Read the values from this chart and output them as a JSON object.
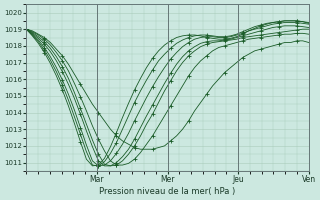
{
  "title": "Pression niveau de la mer( hPa )",
  "xlim": [
    0,
    96
  ],
  "ylim": [
    1010.5,
    1020.5
  ],
  "yticks": [
    1011,
    1012,
    1013,
    1014,
    1015,
    1016,
    1017,
    1018,
    1019,
    1020
  ],
  "xtick_positions": [
    24,
    48,
    72,
    96
  ],
  "xtick_labels": [
    "Mar",
    "Mer",
    "Jeu",
    "Ven"
  ],
  "bg_color": "#cce8e0",
  "grid_color": "#aaccbb",
  "line_color": "#1a5c28",
  "marker": "+",
  "markevery": 3,
  "series": [
    [
      1019.0,
      1018.9,
      1018.7,
      1018.5,
      1018.2,
      1017.8,
      1017.4,
      1016.9,
      1016.3,
      1015.7,
      1015.1,
      1014.5,
      1014.0,
      1013.5,
      1013.0,
      1012.6,
      1012.3,
      1012.1,
      1011.9,
      1011.8,
      1011.8,
      1011.8,
      1011.9,
      1012.0,
      1012.3,
      1012.6,
      1013.0,
      1013.5,
      1014.1,
      1014.6,
      1015.1,
      1015.6,
      1016.0,
      1016.4,
      1016.7,
      1017.0,
      1017.3,
      1017.5,
      1017.7,
      1017.8,
      1017.9,
      1018.0,
      1018.1,
      1018.2,
      1018.2,
      1018.3,
      1018.3,
      1018.2
    ],
    [
      1019.0,
      1018.85,
      1018.65,
      1018.4,
      1018.05,
      1017.6,
      1017.1,
      1016.5,
      1015.75,
      1014.95,
      1014.1,
      1013.2,
      1012.4,
      1011.7,
      1011.1,
      1010.85,
      1010.85,
      1010.95,
      1011.2,
      1011.6,
      1012.1,
      1012.6,
      1013.2,
      1013.8,
      1014.4,
      1015.0,
      1015.6,
      1016.2,
      1016.7,
      1017.1,
      1017.4,
      1017.7,
      1017.9,
      1018.0,
      1018.1,
      1018.2,
      1018.3,
      1018.4,
      1018.45,
      1018.5,
      1018.55,
      1018.6,
      1018.65,
      1018.7,
      1018.7,
      1018.75,
      1018.75,
      1018.7
    ],
    [
      1019.0,
      1018.8,
      1018.55,
      1018.25,
      1017.85,
      1017.35,
      1016.75,
      1016.05,
      1015.2,
      1014.25,
      1013.3,
      1012.35,
      1011.5,
      1010.9,
      1010.8,
      1010.85,
      1011.1,
      1011.5,
      1012.0,
      1012.6,
      1013.3,
      1013.9,
      1014.6,
      1015.3,
      1015.9,
      1016.5,
      1017.0,
      1017.4,
      1017.7,
      1017.95,
      1018.1,
      1018.2,
      1018.25,
      1018.3,
      1018.35,
      1018.4,
      1018.5,
      1018.55,
      1018.6,
      1018.65,
      1018.7,
      1018.75,
      1018.8,
      1018.85,
      1018.9,
      1018.95,
      1019.0,
      1019.0
    ],
    [
      1019.0,
      1018.75,
      1018.45,
      1018.1,
      1017.65,
      1017.1,
      1016.45,
      1015.7,
      1014.85,
      1013.9,
      1012.9,
      1011.95,
      1011.1,
      1010.8,
      1010.8,
      1011.0,
      1011.35,
      1011.8,
      1012.4,
      1013.1,
      1013.8,
      1014.45,
      1015.1,
      1015.75,
      1016.35,
      1016.9,
      1017.35,
      1017.7,
      1017.95,
      1018.15,
      1018.25,
      1018.3,
      1018.3,
      1018.35,
      1018.4,
      1018.5,
      1018.6,
      1018.7,
      1018.8,
      1018.9,
      1019.0,
      1019.1,
      1019.15,
      1019.2,
      1019.2,
      1019.2,
      1019.15,
      1019.1
    ],
    [
      1019.0,
      1018.7,
      1018.35,
      1017.9,
      1017.35,
      1016.7,
      1015.95,
      1015.1,
      1014.15,
      1013.1,
      1012.05,
      1011.1,
      1010.8,
      1010.85,
      1011.1,
      1011.55,
      1012.1,
      1012.75,
      1013.5,
      1014.2,
      1014.9,
      1015.55,
      1016.15,
      1016.7,
      1017.2,
      1017.6,
      1017.95,
      1018.2,
      1018.4,
      1018.5,
      1018.55,
      1018.55,
      1018.5,
      1018.5,
      1018.55,
      1018.65,
      1018.75,
      1018.9,
      1019.0,
      1019.1,
      1019.2,
      1019.3,
      1019.35,
      1019.4,
      1019.4,
      1019.4,
      1019.35,
      1019.3
    ],
    [
      1019.0,
      1018.65,
      1018.25,
      1017.75,
      1017.15,
      1016.45,
      1015.65,
      1014.75,
      1013.75,
      1012.7,
      1011.65,
      1010.85,
      1010.8,
      1011.05,
      1011.55,
      1012.2,
      1013.0,
      1013.8,
      1014.6,
      1015.3,
      1015.95,
      1016.55,
      1017.1,
      1017.5,
      1017.85,
      1018.15,
      1018.35,
      1018.5,
      1018.6,
      1018.65,
      1018.65,
      1018.6,
      1018.55,
      1018.55,
      1018.6,
      1018.7,
      1018.85,
      1019.0,
      1019.15,
      1019.25,
      1019.35,
      1019.4,
      1019.45,
      1019.5,
      1019.5,
      1019.5,
      1019.45,
      1019.4
    ],
    [
      1019.0,
      1018.6,
      1018.15,
      1017.6,
      1016.95,
      1016.2,
      1015.35,
      1014.4,
      1013.35,
      1012.25,
      1011.2,
      1010.8,
      1010.85,
      1011.25,
      1011.95,
      1012.8,
      1013.7,
      1014.55,
      1015.35,
      1016.05,
      1016.7,
      1017.25,
      1017.7,
      1018.05,
      1018.3,
      1018.5,
      1018.6,
      1018.65,
      1018.65,
      1018.6,
      1018.5,
      1018.45,
      1018.4,
      1018.4,
      1018.45,
      1018.55,
      1018.7,
      1018.9,
      1019.05,
      1019.2,
      1019.3,
      1019.4,
      1019.45,
      1019.5,
      1019.5,
      1019.5,
      1019.45,
      1019.35
    ]
  ]
}
